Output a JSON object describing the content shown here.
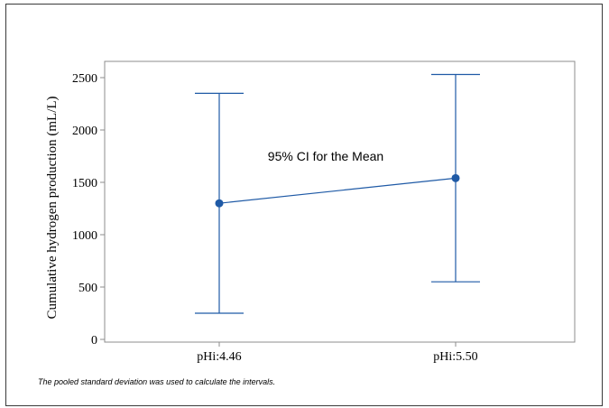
{
  "chart_data": {
    "type": "interval",
    "ylabel": "Cumulative hydrogen production (mL/L)",
    "categories": [
      "pHi:4.46",
      "pHi:5.50"
    ],
    "series": [
      {
        "mean": [
          1300,
          1540
        ],
        "ci_lower": [
          250,
          550
        ],
        "ci_upper": [
          2350,
          2530
        ]
      }
    ],
    "ylim": [
      0,
      2600
    ],
    "yticks": [
      "0",
      "500",
      "1000",
      "1500",
      "2000",
      "2500"
    ],
    "annotation": "95% CI for the Mean",
    "grid": false,
    "colors": {
      "series": "#1f5aa6",
      "axis": "#8c8c8c",
      "frame": "#3a3a3a"
    }
  },
  "footnote": "The pooled standard deviation was used to calculate the intervals."
}
